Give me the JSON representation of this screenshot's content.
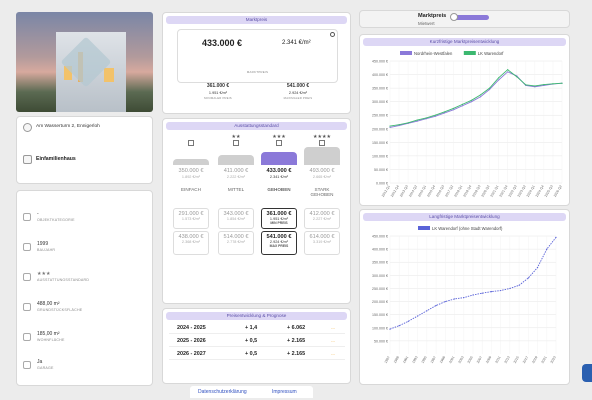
{
  "property": {
    "address": "Am Wasserturm 2, Ennigerloh",
    "type": "Einfamilienhaus",
    "attributes": [
      {
        "value": "-",
        "label": "OBJEKTKATEGORIE",
        "icon": "category-icon"
      },
      {
        "value": "1999",
        "label": "BAUJAHR",
        "icon": "calendar-icon"
      },
      {
        "value": "★★★",
        "label": "AUSSTATTUNGSSTANDARD",
        "icon": "quality-icon"
      },
      {
        "value": "488,00 m²",
        "label": "GRUNDSTÜCKSFLÄCHE",
        "icon": "land-area-icon"
      },
      {
        "value": "185,00 m²",
        "label": "WOHNFLÄCHE",
        "icon": "living-area-icon"
      },
      {
        "value": "Ja",
        "label": "GARAGE",
        "icon": "garage-icon"
      }
    ]
  },
  "marktpreis": {
    "title": "Marktpreis",
    "price": "433.000 €",
    "per_sqm": "2.341 €/m²",
    "caption": "MARKTPREIS",
    "info_icon": "info-icon",
    "min": {
      "price": "361.000 €",
      "per_sqm": "1.951 €/m²",
      "label": "MINIMALER PREIS"
    },
    "max": {
      "price": "541.000 €",
      "per_sqm": "2.924 €/m²",
      "label": "MAXIMALER PREIS"
    }
  },
  "ausstattung": {
    "title": "Ausstattungsstandard",
    "levels": [
      {
        "stars": "",
        "label": "EINFACH",
        "price": "350.000 €",
        "per_sqm": "1.892 €/m²",
        "min_price": "291.000 €",
        "min_sqm": "1.573 €/m²",
        "max_price": "438.000 €",
        "max_sqm": "2.368 €/m²",
        "bar": 0.35,
        "selected": false
      },
      {
        "stars": "★★",
        "label": "MITTEL",
        "price": "411.000 €",
        "per_sqm": "2.222 €/m²",
        "min_price": "343.000 €",
        "min_sqm": "1.854 €/m²",
        "max_price": "514.000 €",
        "max_sqm": "2.778 €/m²",
        "bar": 0.55,
        "selected": false
      },
      {
        "stars": "★★★",
        "label": "GEHOBEN",
        "price": "433.000 €",
        "per_sqm": "2.341 €/m²",
        "min_price": "361.000 €",
        "min_sqm": "1.951 €/m²",
        "max_price": "541.000 €",
        "max_sqm": "2.924 €/m²",
        "min_tag": "MIN PREIS",
        "max_tag": "MAX PREIS",
        "bar": 0.7,
        "selected": true
      },
      {
        "stars": "★★★★",
        "label": "STARK GEHOBEN",
        "price": "493.000 €",
        "per_sqm": "2.665 €/m²",
        "min_price": "412.000 €",
        "min_sqm": "2.227 €/m²",
        "max_price": "614.000 €",
        "max_sqm": "3.319 €/m²",
        "bar": 1.0,
        "selected": false
      }
    ]
  },
  "prognose": {
    "title": "Preisentwicklung & Prognose",
    "rows": [
      {
        "period": "2024 - 2025",
        "pct": "+ 1,4",
        "eur": "+ 6.062",
        "trend": "---"
      },
      {
        "period": "2025 - 2026",
        "pct": "+ 0,5",
        "eur": "+ 2.165",
        "trend": "---"
      },
      {
        "period": "2026 - 2027",
        "pct": "+ 0,5",
        "eur": "+ 2.165",
        "trend": "---"
      }
    ]
  },
  "footer": {
    "privacy": "Datenschutzerklärung",
    "imprint": "Impressum"
  },
  "toggle": {
    "left": "Marktpreis",
    "right": "Mietwert"
  },
  "colors": {
    "accent": "#8b79d9",
    "accent_light": "#ddd7f5",
    "green": "#3cb870",
    "blue": "#5a63d8"
  },
  "chart_data": [
    {
      "type": "line",
      "title": "Kurzfristige Marktpreisentwicklung",
      "ylim": [
        0,
        450000
      ],
      "yticks": [
        "0.000 €",
        "50.000 €",
        "100.000 €",
        "150.000 €",
        "200.000 €",
        "250.000 €",
        "300.000 €",
        "350.000 €",
        "400.000 €",
        "450.000 €"
      ],
      "categories": [
        "2012 Q1",
        "2012 Q4",
        "2013 Q3",
        "2014 Q2",
        "2015 Q1",
        "2015 Q4",
        "2016 Q3",
        "2017 Q2",
        "2018 Q1",
        "2018 Q4",
        "2019 Q3",
        "2020 Q2",
        "2021 Q1",
        "2021 Q4",
        "2022 Q3",
        "2023 Q2",
        "2024 Q1",
        "2024 Q4",
        "2025 Q3",
        "2026 Q2"
      ],
      "series": [
        {
          "name": "Nordrhein-Westfalen",
          "color": "#8b79d9",
          "values": [
            205000,
            212000,
            220000,
            228000,
            237000,
            246000,
            258000,
            270000,
            285000,
            300000,
            318000,
            345000,
            380000,
            410000,
            395000,
            360000,
            355000,
            360000,
            365000,
            368000
          ]
        },
        {
          "name": "LK Warendorf",
          "color": "#3cb870",
          "values": [
            210000,
            215000,
            222000,
            232000,
            240000,
            250000,
            262000,
            275000,
            290000,
            305000,
            325000,
            350000,
            388000,
            418000,
            392000,
            362000,
            358000,
            363000,
            366000,
            368000
          ]
        }
      ]
    },
    {
      "type": "line",
      "title": "Langfristige Marktpreisentwicklung",
      "ylim": [
        0,
        450000
      ],
      "yticks": [
        "50.000 €",
        "100.000 €",
        "150.000 €",
        "200.000 €",
        "250.000 €",
        "300.000 €",
        "350.000 €",
        "400.000 €",
        "450.000 €"
      ],
      "categories": [
        "1987",
        "1989",
        "1991",
        "1993",
        "1995",
        "1997",
        "1999",
        "2001",
        "2003",
        "2005",
        "2007",
        "2009",
        "2011",
        "2013",
        "2015",
        "2017",
        "2019",
        "2021",
        "2023"
      ],
      "series": [
        {
          "name": "LK Warendorf (ohne Stadt Warendorf)",
          "color": "#5a63d8",
          "values": [
            95000,
            108000,
            125000,
            145000,
            165000,
            185000,
            200000,
            210000,
            215000,
            225000,
            232000,
            238000,
            242000,
            250000,
            262000,
            290000,
            330000,
            400000,
            445000
          ]
        }
      ]
    }
  ]
}
